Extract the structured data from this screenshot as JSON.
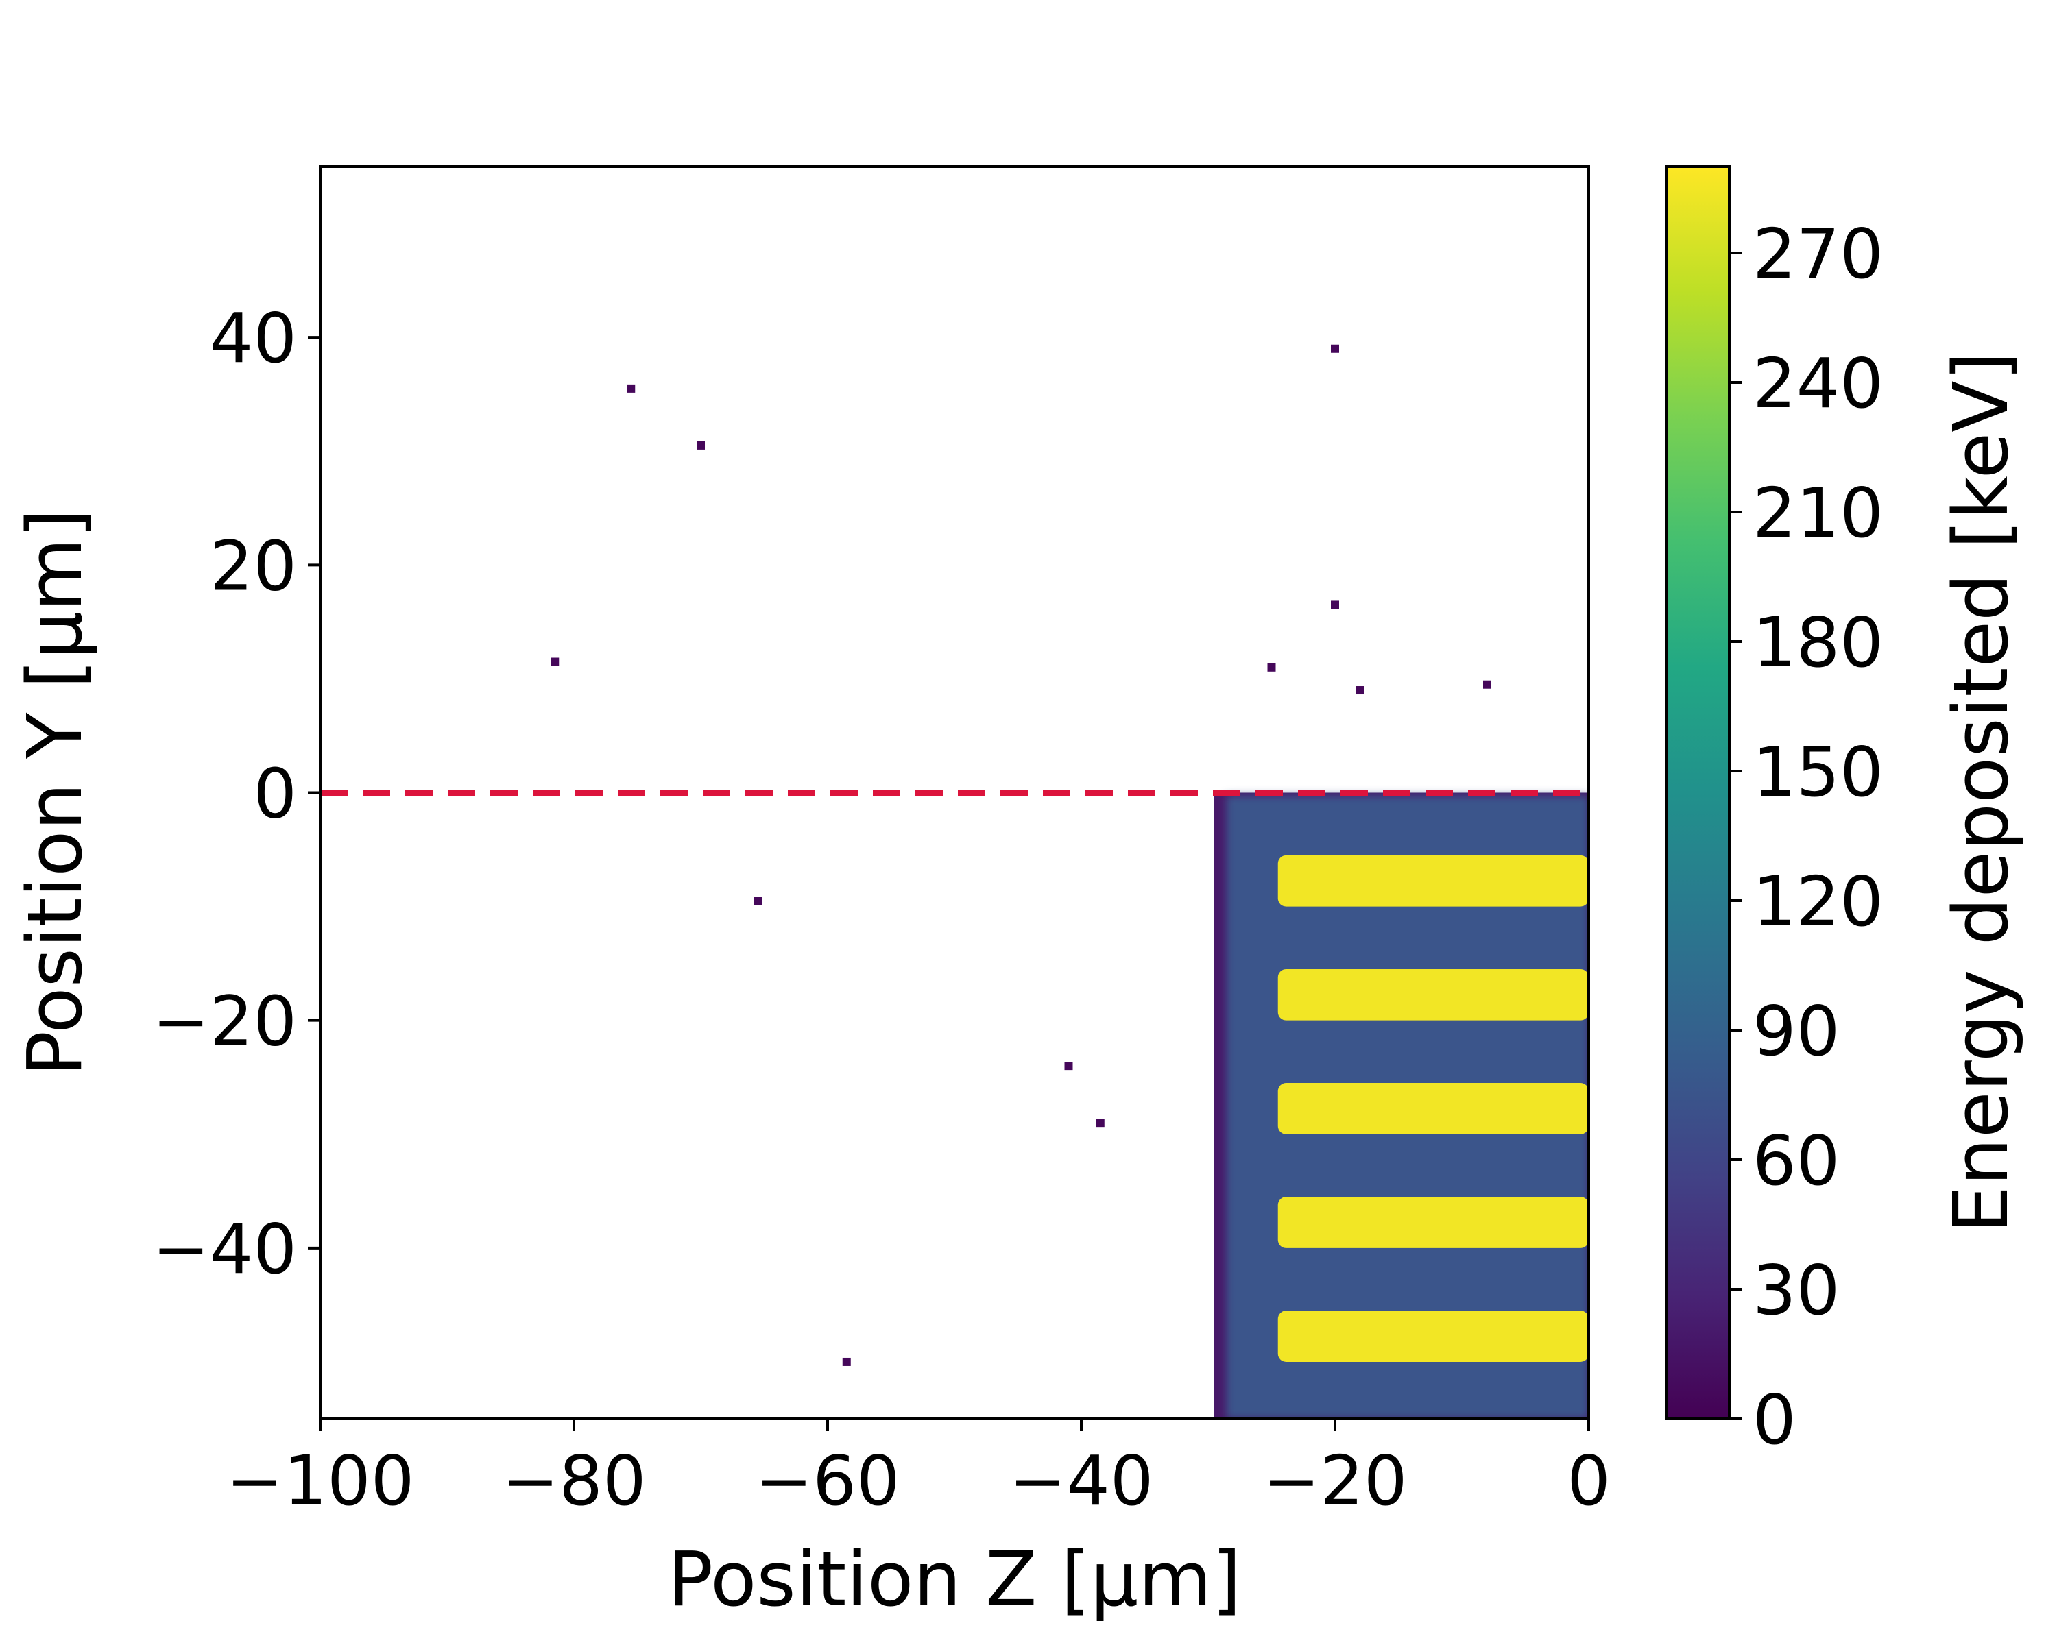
{
  "chart_data": {
    "type": "heatmap",
    "title": "",
    "xlabel": "Position Z [μm]",
    "ylabel": "Position Y [μm]",
    "xlim": [
      -100,
      0
    ],
    "ylim": [
      -55,
      55
    ],
    "x_ticks": [
      -100,
      -80,
      -60,
      -40,
      -20,
      0
    ],
    "x_tick_labels": [
      "−100",
      "−80",
      "−60",
      "−40",
      "−20",
      "0"
    ],
    "y_ticks": [
      40,
      20,
      0,
      -20,
      -40
    ],
    "y_tick_labels": [
      "40",
      "20",
      "0",
      "−20",
      "−40"
    ],
    "grid": false,
    "colormap": "viridis",
    "colorbar": {
      "label": "Energy deposited [keV]",
      "range": [
        0,
        290
      ],
      "ticks": [
        0,
        30,
        60,
        90,
        120,
        150,
        180,
        210,
        240,
        270
      ],
      "tick_labels": [
        "0",
        "30",
        "60",
        "90",
        "120",
        "150",
        "180",
        "210",
        "240",
        "270"
      ]
    },
    "reference_line": {
      "y": 0,
      "style": "dashed",
      "color": "#dc143c"
    },
    "regions": [
      {
        "name": "scattered-halo",
        "z_range": [
          -29,
          0
        ],
        "y_range": [
          -55,
          0
        ],
        "value_keV": 75
      },
      {
        "name": "stripe-1",
        "z_range": [
          -24.5,
          0
        ],
        "y_range": [
          -10,
          -5.5
        ],
        "value_keV": 285
      },
      {
        "name": "stripe-2",
        "z_range": [
          -24.5,
          0
        ],
        "y_range": [
          -20,
          -15.5
        ],
        "value_keV": 285
      },
      {
        "name": "stripe-3",
        "z_range": [
          -24.5,
          0
        ],
        "y_range": [
          -30,
          -25.5
        ],
        "value_keV": 285
      },
      {
        "name": "stripe-4",
        "z_range": [
          -24.5,
          0
        ],
        "y_range": [
          -40,
          -35.5
        ],
        "value_keV": 285
      },
      {
        "name": "stripe-5",
        "z_range": [
          -24.5,
          0
        ],
        "y_range": [
          -50,
          -45.5
        ],
        "value_keV": 285
      }
    ],
    "stray_points": [
      {
        "z": -75.5,
        "y": 35.5
      },
      {
        "z": -70,
        "y": 30.5
      },
      {
        "z": -81.5,
        "y": 11.5
      },
      {
        "z": -65.5,
        "y": -9.5
      },
      {
        "z": -58.5,
        "y": -50
      },
      {
        "z": -41,
        "y": -24
      },
      {
        "z": -38.5,
        "y": -29
      },
      {
        "z": -20,
        "y": 39
      },
      {
        "z": -20,
        "y": 16.5
      },
      {
        "z": -25,
        "y": 11
      },
      {
        "z": -18,
        "y": 9
      },
      {
        "z": -8,
        "y": 9.5
      }
    ]
  }
}
